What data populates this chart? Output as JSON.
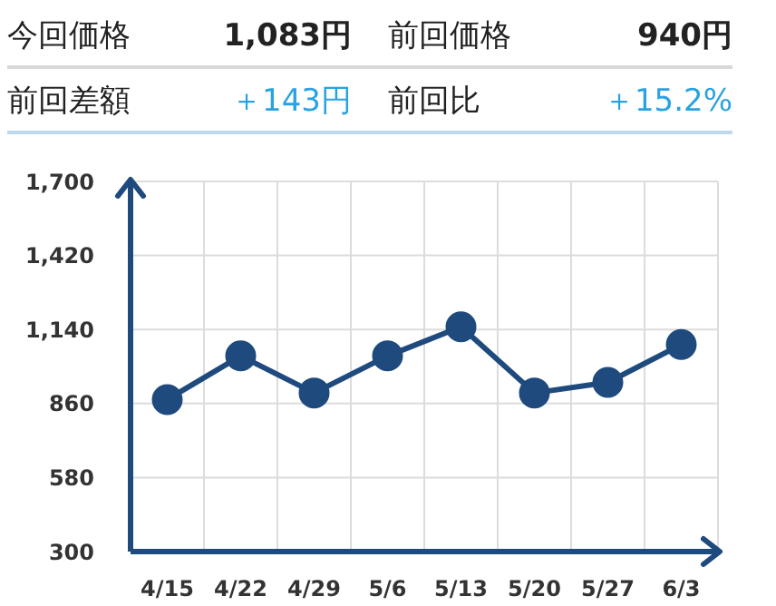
{
  "chart_data": {
    "type": "line",
    "annotations": [
      "今回価格",
      "1,083円",
      "前回価格",
      "940円",
      "前回差額",
      "＋143円",
      "前回比",
      "＋15.2%"
    ],
    "categories": [
      "4/15",
      "4/22",
      "4/29",
      "5/6",
      "5/13",
      "5/20",
      "5/27",
      "6/3"
    ],
    "series": [
      {
        "color": "#1f4a7e",
        "values": [
          875,
          1040,
          900,
          1040,
          1150,
          900,
          940,
          1083
        ]
      }
    ],
    "ylim": [
      300,
      1700
    ],
    "yticks": [
      300,
      {
        "value": 580,
        "label": "580"
      },
      {
        "value": 860,
        "label": "860"
      },
      {
        "value": 1140,
        "label": "1,140"
      },
      {
        "value": 1420,
        "label": "1,420"
      },
      {
        "value": 1700,
        "label": "1,700"
      }
    ],
    "grid": true,
    "marker": "circle",
    "line_style": "solid"
  }
}
